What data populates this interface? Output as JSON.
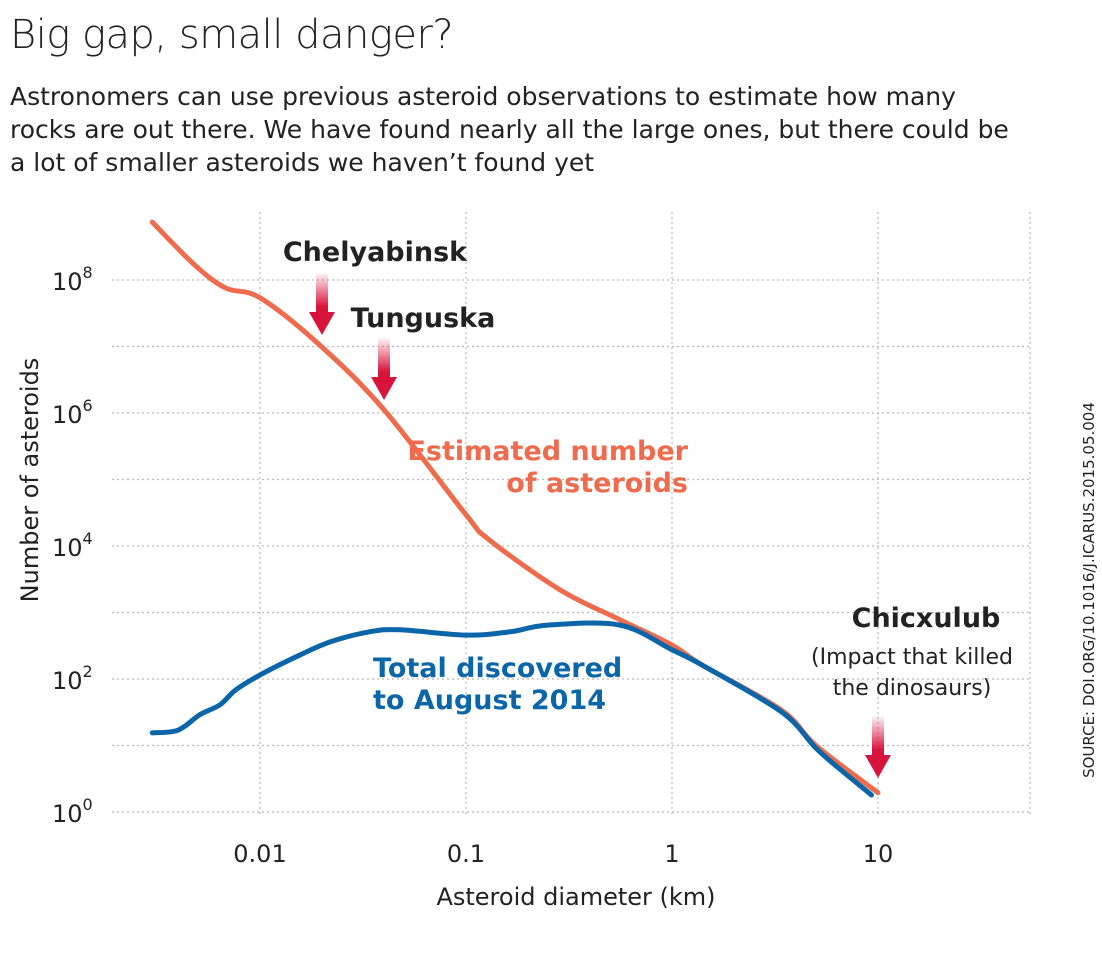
{
  "header": {
    "title": "Big gap, small danger?",
    "subtitle": "Astronomers can use previous asteroid observations to estimate how many rocks are out there. We have found nearly all the large ones, but there could be a lot of smaller asteroids we haven’t found yet"
  },
  "source": "SOURCE: DOI.ORG/10.1016/J.ICARUS.2015.05.004",
  "chart_data": {
    "type": "line",
    "xlabel": "Asteroid diameter (km)",
    "ylabel": "Number of asteroids",
    "x_scale": "log",
    "y_scale": "log",
    "xlim": [
      0.0025,
      50
    ],
    "ylim": [
      1,
      1000000000
    ],
    "grid": true,
    "x_ticks": [
      {
        "value": 0.01,
        "label": "0.01"
      },
      {
        "value": 0.1,
        "label": "0.1"
      },
      {
        "value": 1,
        "label": "1"
      },
      {
        "value": 10,
        "label": "10"
      }
    ],
    "y_ticks": [
      {
        "value": 1,
        "base": "10",
        "exp": "0"
      },
      {
        "value": 100,
        "base": "10",
        "exp": "2"
      },
      {
        "value": 10000,
        "base": "10",
        "exp": "4"
      },
      {
        "value": 1000000,
        "base": "10",
        "exp": "6"
      },
      {
        "value": 100000000,
        "base": "10",
        "exp": "8"
      }
    ],
    "series": [
      {
        "name": "Estimated number of asteroids",
        "label_lines": [
          "Estimated number",
          "of asteroids"
        ],
        "color": "#ee6b4d",
        "points": [
          [
            0.003,
            741000000
          ],
          [
            0.0048,
            170000000
          ],
          [
            0.0068,
            76000000
          ],
          [
            0.01,
            54000000
          ],
          [
            0.0195,
            10500000
          ],
          [
            0.04,
            1120000
          ],
          [
            0.1,
            29500
          ],
          [
            0.13,
            12300
          ],
          [
            0.286,
            2190
          ],
          [
            0.56,
            776
          ],
          [
            1,
            324
          ],
          [
            1.4,
            162
          ],
          [
            3.4,
            34
          ],
          [
            5,
            10
          ],
          [
            10,
            1.95
          ]
        ]
      },
      {
        "name": "Total discovered to August 2014",
        "label_lines": [
          "Total discovered",
          "to August 2014"
        ],
        "color": "#0a66a8",
        "points": [
          [
            0.003,
            15.5
          ],
          [
            0.004,
            17
          ],
          [
            0.0051,
            29
          ],
          [
            0.0064,
            41
          ],
          [
            0.0076,
            68
          ],
          [
            0.01,
            115
          ],
          [
            0.0156,
            229
          ],
          [
            0.022,
            363
          ],
          [
            0.034,
            513
          ],
          [
            0.048,
            550
          ],
          [
            0.1,
            457
          ],
          [
            0.164,
            513
          ],
          [
            0.25,
            646
          ],
          [
            0.56,
            646
          ],
          [
            1,
            275
          ],
          [
            1.4,
            162
          ],
          [
            3.4,
            32
          ],
          [
            5,
            9.1
          ],
          [
            6.6,
            4.3
          ],
          [
            9.3,
            1.8
          ]
        ]
      }
    ],
    "annotations": [
      {
        "label": "Chelyabinsk",
        "x": 0.02,
        "arrow_color": "#d9143c"
      },
      {
        "label": "Tunguska",
        "x": 0.04,
        "arrow_color": "#d9143c"
      },
      {
        "label": "Chicxulub",
        "note": [
          "(Impact that killed",
          "the dinosaurs)"
        ],
        "x": 10,
        "arrow_color": "#d9143c"
      }
    ]
  }
}
